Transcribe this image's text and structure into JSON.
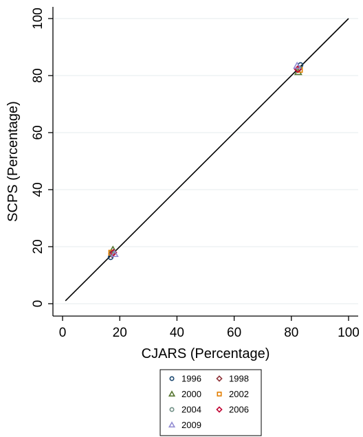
{
  "chart_data": {
    "type": "scatter",
    "xlabel": "CJARS (Percentage)",
    "ylabel": "SCPS (Percentage)",
    "xlim": [
      0,
      100
    ],
    "ylim": [
      0,
      100
    ],
    "x_ticks": [
      0,
      20,
      40,
      60,
      80,
      100
    ],
    "y_ticks": [
      0,
      20,
      40,
      60,
      80,
      100
    ],
    "grid": true,
    "legend_position": "bottom",
    "reference_line": {
      "x": [
        1,
        100
      ],
      "y": [
        1,
        100
      ],
      "color": "#000000"
    },
    "series": [
      {
        "name": "1996",
        "marker": "circle",
        "color": "#1a476f",
        "points": [
          [
            16.8,
            16.3
          ],
          [
            83.2,
            83.7
          ]
        ]
      },
      {
        "name": "1998",
        "marker": "diamond",
        "color": "#90353b",
        "points": [
          [
            17.2,
            17.4
          ],
          [
            82.6,
            82.4
          ]
        ]
      },
      {
        "name": "2000",
        "marker": "triangle",
        "color": "#55752f",
        "points": [
          [
            17.6,
            18.9
          ],
          [
            82.4,
            81.2
          ]
        ]
      },
      {
        "name": "2002",
        "marker": "square",
        "color": "#e37e00",
        "points": [
          [
            17.0,
            17.9
          ],
          [
            83.0,
            82.0
          ]
        ]
      },
      {
        "name": "2004",
        "marker": "circle",
        "color": "#6e8e84",
        "points": [
          [
            17.4,
            17.6
          ],
          [
            82.6,
            82.6
          ]
        ]
      },
      {
        "name": "2006",
        "marker": "diamond",
        "color": "#c10534",
        "points": [
          [
            17.8,
            17.9
          ],
          [
            82.2,
            82.2
          ]
        ]
      },
      {
        "name": "2009",
        "marker": "triangle",
        "color": "#938dd2",
        "points": [
          [
            18.2,
            17.4
          ],
          [
            82.0,
            83.4
          ]
        ]
      }
    ]
  }
}
